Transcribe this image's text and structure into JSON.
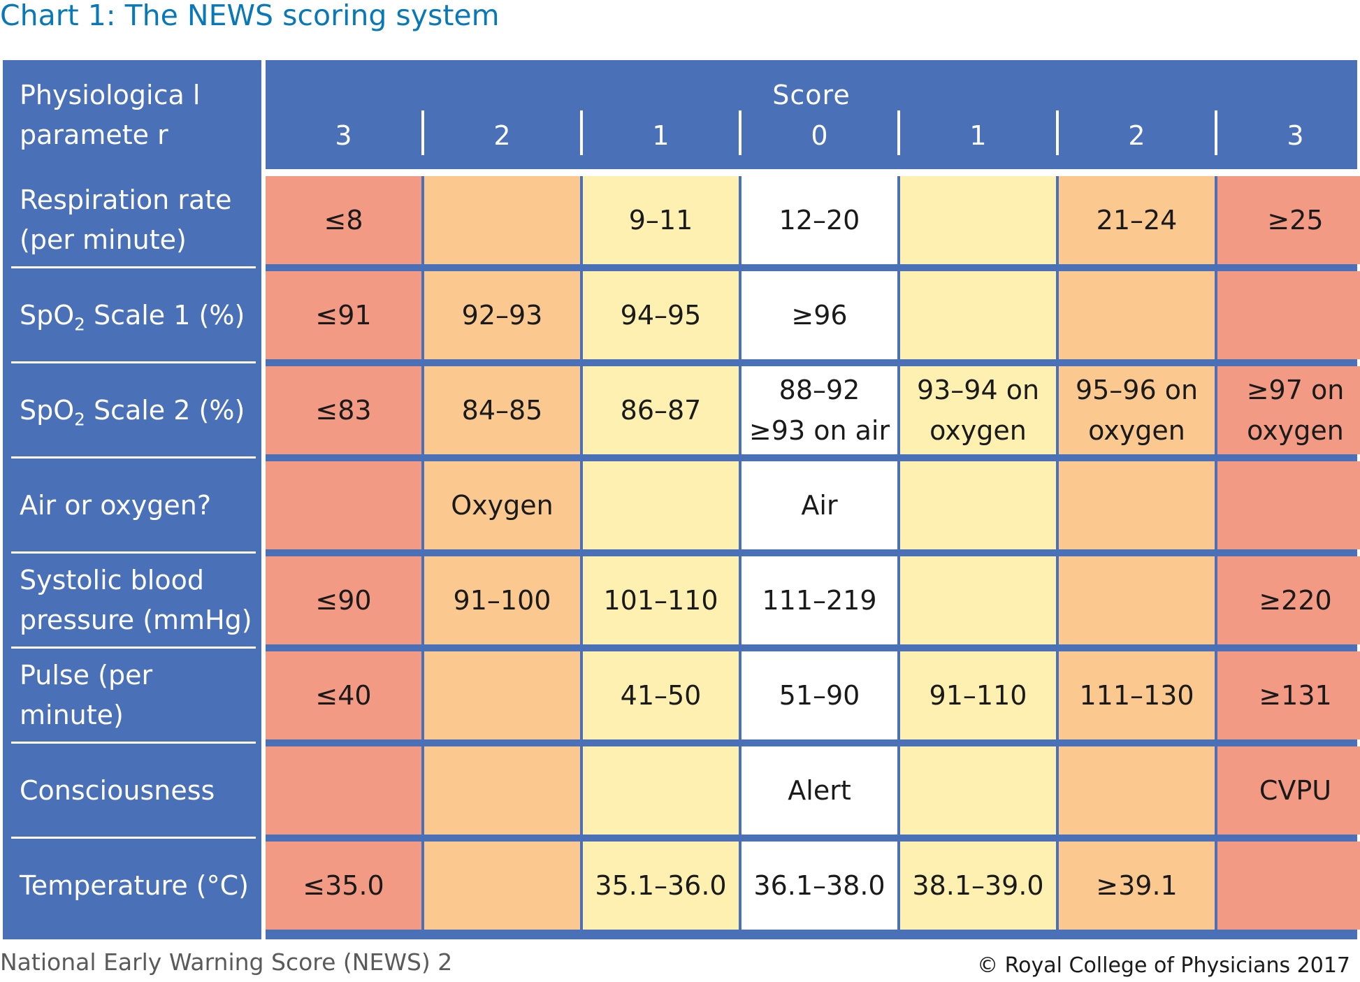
{
  "title": "Chart 1:  The NEWS scoring system",
  "header": {
    "param_label_line1": "Physiologica l",
    "param_label_line2": "paramete r",
    "score_label": "Score",
    "scores": [
      "3",
      "2",
      "1",
      "0",
      "1",
      "2",
      "3"
    ]
  },
  "colors": {
    "header_blue": "#4a71b8",
    "score_3": "#f29a84",
    "score_2": "#fbc98f",
    "score_1": "#fdf0b0",
    "score_0": "#ffffff",
    "title_blue": "#0a78b6"
  },
  "rows": [
    {
      "label_html": "Respiration rate<br>(per minute)",
      "cells": [
        "≤8",
        "",
        "9–11",
        "12–20",
        "",
        "21–24",
        "≥25"
      ]
    },
    {
      "label_html": "SpO<sub>2</sub> Scale 1 (%)",
      "cells": [
        "≤91",
        "92–93",
        "94–95",
        "≥96",
        "",
        "",
        ""
      ]
    },
    {
      "label_html": "SpO<sub>2</sub> Scale 2 (%)",
      "cells": [
        "≤83",
        "84–85",
        "86–87",
        "88–92\n≥93 on air",
        "93–94 on\noxygen",
        "95–96 on\noxygen",
        "≥97 on\noxygen"
      ]
    },
    {
      "label_html": "Air or oxygen?",
      "cells": [
        "",
        "Oxygen",
        "",
        "Air",
        "",
        "",
        ""
      ]
    },
    {
      "label_html": "Systolic blood<br>pressure (mmHg)",
      "cells": [
        "≤90",
        "91–100",
        "101–110",
        "111–219",
        "",
        "",
        "≥220"
      ]
    },
    {
      "label_html": "Pulse (per minute)",
      "cells": [
        "≤40",
        "",
        "41–50",
        "51–90",
        "91–110",
        "111–130",
        "≥131"
      ]
    },
    {
      "label_html": "Consciousness",
      "cells": [
        "",
        "",
        "",
        "Alert",
        "",
        "",
        "CVPU"
      ]
    },
    {
      "label_html": "Temperature (°C)",
      "cells": [
        "≤35.0",
        "",
        "35.1–36.0",
        "36.1–38.0",
        "38.1–39.0",
        "≥39.1",
        ""
      ]
    }
  ],
  "footer": {
    "left": "National Early Warning Score (NEWS) 2",
    "right": "© Royal College of Physicians 2017"
  }
}
